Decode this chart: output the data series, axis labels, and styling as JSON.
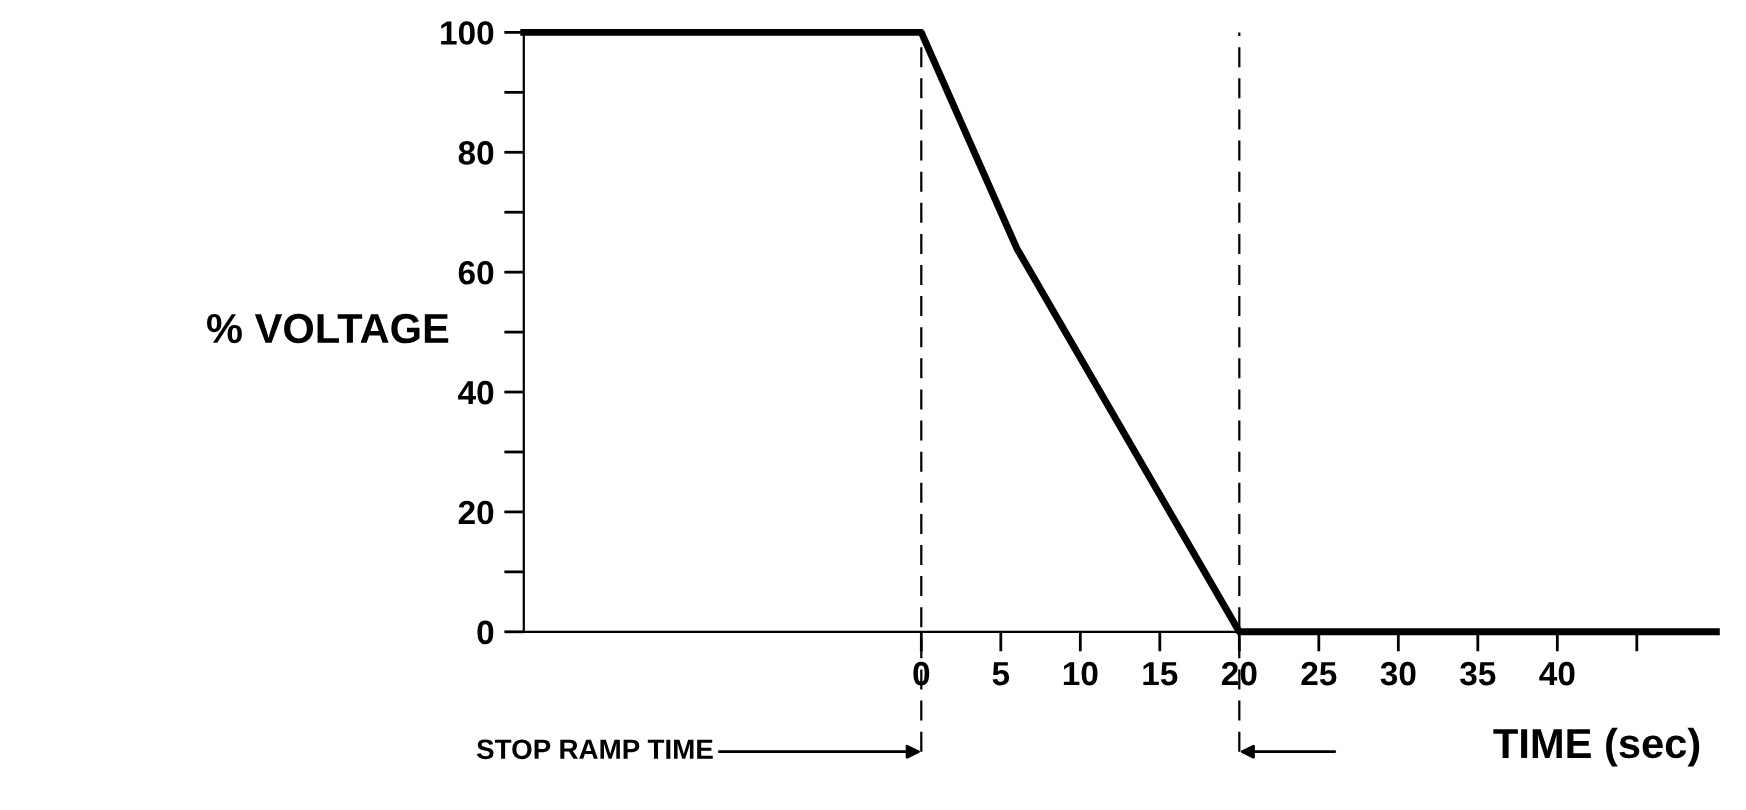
{
  "chart_data": {
    "type": "line",
    "xlabel": "TIME (sec)",
    "ylabel": "% VOLTAGE",
    "x": [
      -25,
      0,
      6,
      20,
      50
    ],
    "series": [
      {
        "color": "#000000",
        "values": [
          100,
          100,
          64,
          0,
          0
        ]
      }
    ],
    "xlim": [
      -25,
      50
    ],
    "ylim": [
      0,
      100
    ],
    "xticks": [
      0,
      5,
      10,
      15,
      20,
      25,
      30,
      35,
      40,
      {
        "value": 45,
        "label": null
      }
    ],
    "yticks": [
      0,
      {
        "value": 10,
        "label": null
      },
      20,
      {
        "value": 30,
        "label": null
      },
      40,
      {
        "value": 50,
        "label": null
      },
      60,
      {
        "value": 70,
        "label": null
      },
      80,
      {
        "value": 90,
        "label": null
      },
      100
    ],
    "ref_lines": [
      {
        "axis": "x",
        "value": 0,
        "color": "#000000",
        "line_style": "dashed"
      },
      {
        "axis": "x",
        "value": 20,
        "color": "#000000",
        "line_style": "dashed"
      }
    ],
    "annotations": [
      "STOP RAMP TIME"
    ],
    "grid": false,
    "legend": false,
    "marker": "none",
    "line_style": "solid"
  }
}
